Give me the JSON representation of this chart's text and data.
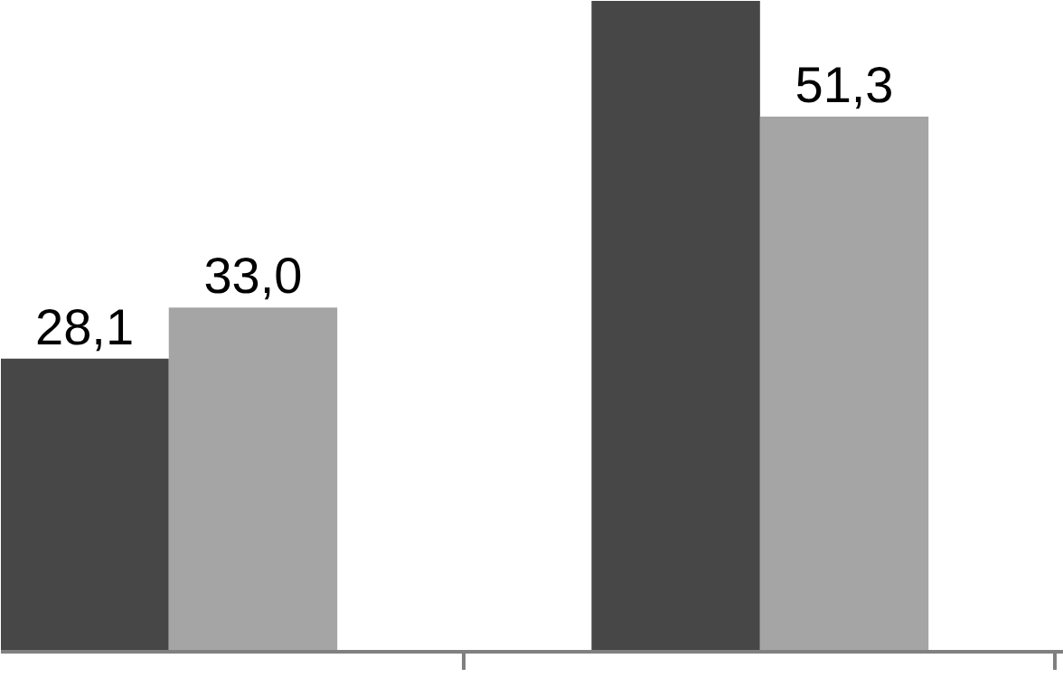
{
  "chart_data": {
    "type": "bar",
    "categories": [
      null,
      null
    ],
    "ylim": [
      0,
      62.4
    ],
    "series": [
      {
        "color": "#474747",
        "values": [
          28.1,
          62.4
        ],
        "value_labels": [
          "28,1",
          null
        ]
      },
      {
        "color": "#a5a5a5",
        "values": [
          33.0,
          51.3
        ],
        "value_labels": [
          "33,0",
          "51,3"
        ]
      }
    ]
  }
}
